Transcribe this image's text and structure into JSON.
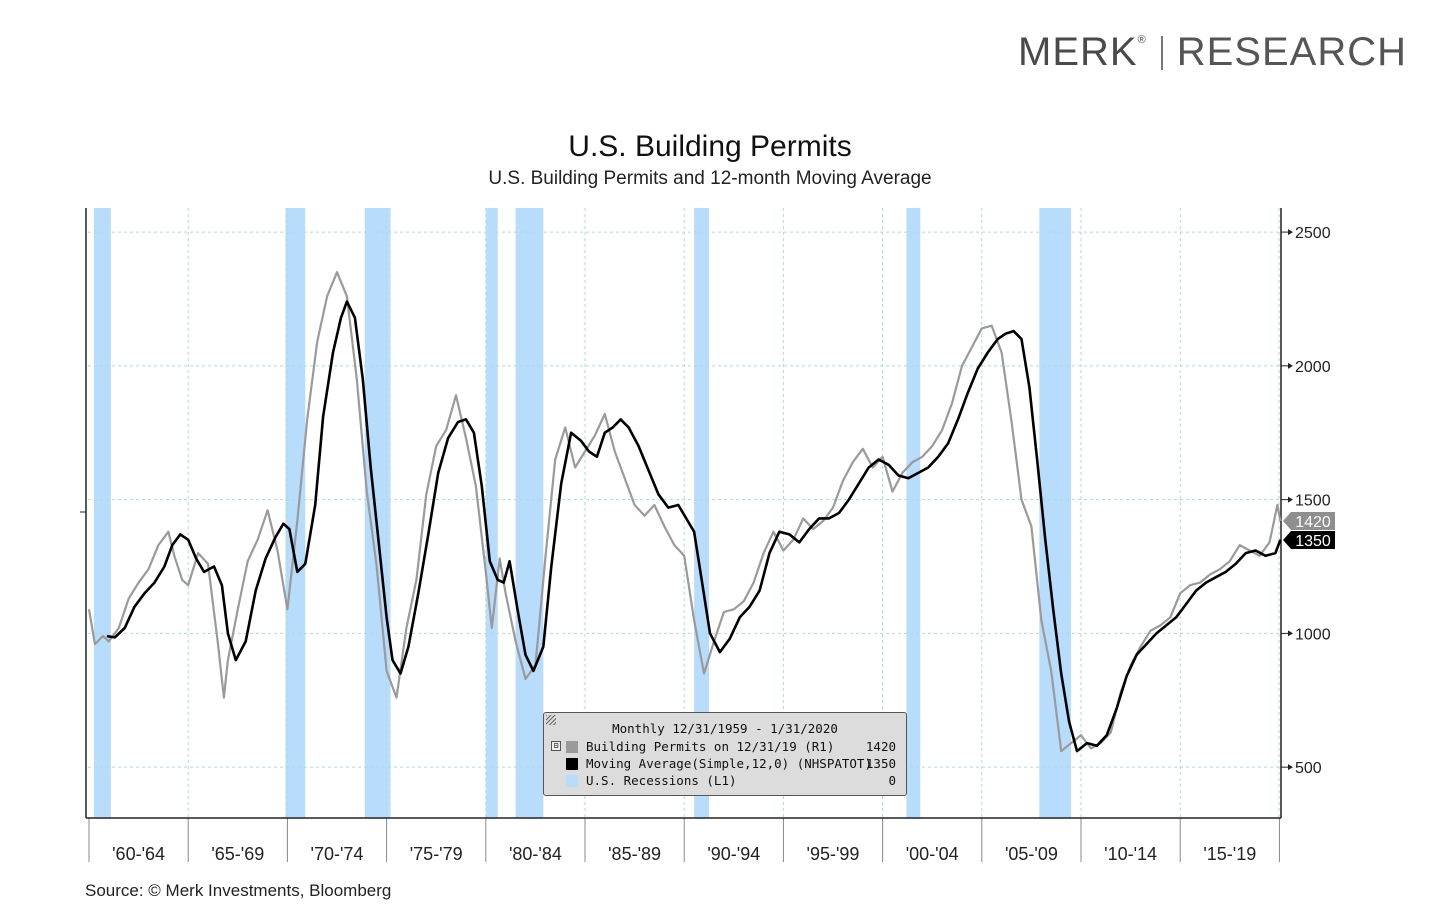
{
  "brand": {
    "name": "MERK",
    "trademark": "®",
    "division": "RESEARCH"
  },
  "title": "U.S. Building Permits",
  "subtitle": "U.S. Building Permits and 12-month Moving Average",
  "source": "Source: © Merk Investments, Bloomberg",
  "legend": {
    "header": "Monthly 12/31/1959 - 1/31/2020",
    "toggle": "⊟",
    "items": [
      {
        "label": "Building Permits on 12/31/19 (R1)",
        "value": "1420",
        "color": "#9a9a9a"
      },
      {
        "label": "Moving Average(Simple,12,0) (NHSPATOT)",
        "value": "1350",
        "color": "#000000"
      },
      {
        "label": "U.S. Recessions (L1)",
        "value": "0",
        "color": "#b8dcfb"
      }
    ]
  },
  "chart_data": {
    "type": "line",
    "x_range": [
      1959.95,
      2020.08
    ],
    "ylim": [
      310,
      2590
    ],
    "yticks": [
      500,
      1000,
      1500,
      2000,
      2500
    ],
    "xtick_labels": [
      "'60-'64",
      "'65-'69",
      "'70-'74",
      "'75-'79",
      "'80-'84",
      "'85-'89",
      "'90-'94",
      "'95-'99",
      "'00-'04",
      "'05-'09",
      "'10-'14",
      "'15-'19"
    ],
    "grid": true,
    "last_value_tags": [
      {
        "label": "1420",
        "value": 1420,
        "color": "#8f8f8f"
      },
      {
        "label": "1350",
        "value": 1350,
        "color": "#000000"
      }
    ],
    "recessions": [
      [
        1960.25,
        1961.1
      ],
      [
        1969.9,
        1970.9
      ],
      [
        1973.9,
        1975.2
      ],
      [
        1980.0,
        1980.6
      ],
      [
        1981.5,
        1982.9
      ],
      [
        1990.5,
        1991.25
      ],
      [
        2001.2,
        2001.9
      ],
      [
        2007.9,
        2009.5
      ]
    ],
    "series": [
      {
        "name": "Building Permits",
        "color": "#9a9a9a",
        "x": [
          1960.0,
          1960.3,
          1960.7,
          1961.0,
          1961.5,
          1962.0,
          1962.5,
          1963.0,
          1963.5,
          1964.0,
          1964.3,
          1964.7,
          1965.0,
          1965.5,
          1966.0,
          1966.5,
          1966.8,
          1967.0,
          1967.5,
          1968.0,
          1968.5,
          1969.0,
          1969.5,
          1970.0,
          1970.5,
          1971.0,
          1971.5,
          1972.0,
          1972.5,
          1973.0,
          1973.5,
          1974.0,
          1974.5,
          1975.0,
          1975.5,
          1976.0,
          1976.5,
          1977.0,
          1977.5,
          1978.0,
          1978.5,
          1979.0,
          1979.5,
          1980.0,
          1980.3,
          1980.7,
          1981.0,
          1981.5,
          1982.0,
          1982.5,
          1983.0,
          1983.5,
          1984.0,
          1984.5,
          1985.0,
          1985.5,
          1986.0,
          1986.5,
          1987.0,
          1987.5,
          1988.0,
          1988.5,
          1989.0,
          1989.5,
          1990.0,
          1990.5,
          1991.0,
          1991.5,
          1992.0,
          1992.5,
          1993.0,
          1993.5,
          1994.0,
          1994.5,
          1995.0,
          1995.5,
          1996.0,
          1996.5,
          1997.0,
          1997.5,
          1998.0,
          1998.5,
          1999.0,
          1999.5,
          2000.0,
          2000.5,
          2001.0,
          2001.5,
          2002.0,
          2002.5,
          2003.0,
          2003.5,
          2004.0,
          2004.5,
          2005.0,
          2005.5,
          2006.0,
          2006.5,
          2007.0,
          2007.5,
          2008.0,
          2008.5,
          2009.0,
          2009.5,
          2010.0,
          2010.5,
          2011.0,
          2011.5,
          2012.0,
          2012.5,
          2013.0,
          2013.5,
          2014.0,
          2014.5,
          2015.0,
          2015.5,
          2016.0,
          2016.5,
          2017.0,
          2017.5,
          2018.0,
          2018.5,
          2019.0,
          2019.5,
          2019.9,
          2020.05
        ],
        "values": [
          1090,
          960,
          990,
          970,
          1020,
          1130,
          1190,
          1240,
          1330,
          1380,
          1290,
          1200,
          1180,
          1300,
          1260,
          960,
          760,
          900,
          1090,
          1270,
          1350,
          1460,
          1310,
          1090,
          1420,
          1800,
          2090,
          2260,
          2350,
          2260,
          1950,
          1530,
          1250,
          860,
          760,
          1020,
          1200,
          1520,
          1700,
          1760,
          1890,
          1730,
          1550,
          1230,
          1020,
          1280,
          1150,
          970,
          830,
          880,
          1280,
          1650,
          1770,
          1620,
          1680,
          1740,
          1820,
          1680,
          1580,
          1480,
          1440,
          1480,
          1400,
          1330,
          1290,
          1050,
          850,
          970,
          1080,
          1090,
          1120,
          1190,
          1300,
          1380,
          1310,
          1350,
          1430,
          1390,
          1420,
          1470,
          1570,
          1640,
          1690,
          1620,
          1660,
          1530,
          1600,
          1640,
          1660,
          1700,
          1760,
          1860,
          2000,
          2070,
          2140,
          2150,
          2050,
          1790,
          1500,
          1400,
          1050,
          860,
          560,
          590,
          620,
          570,
          590,
          630,
          780,
          880,
          950,
          1010,
          1030,
          1060,
          1150,
          1180,
          1190,
          1220,
          1240,
          1270,
          1330,
          1310,
          1290,
          1340,
          1480,
          1420
        ]
      },
      {
        "name": "Moving Average(Simple,12,0) (NHSPATOT)",
        "color": "#000000",
        "x": [
          1960.9,
          1961.3,
          1961.8,
          1962.3,
          1962.8,
          1963.3,
          1963.8,
          1964.2,
          1964.6,
          1965.0,
          1965.4,
          1965.8,
          1966.3,
          1966.7,
          1967.0,
          1967.4,
          1967.9,
          1968.4,
          1968.9,
          1969.4,
          1969.8,
          1970.1,
          1970.5,
          1970.9,
          1971.4,
          1971.8,
          1972.3,
          1972.7,
          1973.0,
          1973.4,
          1973.8,
          1974.2,
          1974.6,
          1975.0,
          1975.3,
          1975.7,
          1976.1,
          1976.6,
          1977.1,
          1977.6,
          1978.1,
          1978.6,
          1979.0,
          1979.4,
          1979.8,
          1980.2,
          1980.6,
          1980.9,
          1981.2,
          1981.6,
          1982.0,
          1982.4,
          1982.9,
          1983.3,
          1983.8,
          1984.3,
          1984.8,
          1985.2,
          1985.6,
          1986.0,
          1986.4,
          1986.8,
          1987.2,
          1987.7,
          1988.2,
          1988.7,
          1989.2,
          1989.7,
          1990.1,
          1990.5,
          1990.9,
          1991.3,
          1991.8,
          1992.3,
          1992.8,
          1993.3,
          1993.8,
          1994.3,
          1994.8,
          1995.3,
          1995.8,
          1996.3,
          1996.8,
          1997.3,
          1997.8,
          1998.3,
          1998.8,
          1999.3,
          1999.8,
          2000.3,
          2000.8,
          2001.3,
          2001.8,
          2002.3,
          2002.8,
          2003.3,
          2003.8,
          2004.3,
          2004.8,
          2005.3,
          2005.8,
          2006.2,
          2006.6,
          2007.0,
          2007.4,
          2007.8,
          2008.2,
          2008.6,
          2009.0,
          2009.4,
          2009.8,
          2010.3,
          2010.8,
          2011.3,
          2011.8,
          2012.3,
          2012.8,
          2013.3,
          2013.8,
          2014.3,
          2014.8,
          2015.3,
          2015.8,
          2016.3,
          2016.8,
          2017.3,
          2017.8,
          2018.3,
          2018.8,
          2019.3,
          2019.8,
          2020.05
        ],
        "values": [
          990,
          985,
          1020,
          1100,
          1150,
          1190,
          1250,
          1330,
          1370,
          1350,
          1280,
          1230,
          1250,
          1180,
          1000,
          900,
          970,
          1160,
          1280,
          1360,
          1410,
          1390,
          1230,
          1260,
          1480,
          1810,
          2050,
          2180,
          2240,
          2180,
          1950,
          1620,
          1340,
          1060,
          900,
          850,
          950,
          1150,
          1370,
          1600,
          1730,
          1790,
          1800,
          1750,
          1550,
          1270,
          1200,
          1190,
          1270,
          1090,
          920,
          860,
          950,
          1250,
          1560,
          1750,
          1720,
          1680,
          1660,
          1750,
          1770,
          1800,
          1770,
          1700,
          1610,
          1520,
          1470,
          1480,
          1430,
          1380,
          1190,
          1000,
          930,
          980,
          1060,
          1100,
          1160,
          1300,
          1380,
          1370,
          1340,
          1390,
          1430,
          1430,
          1450,
          1500,
          1560,
          1620,
          1650,
          1630,
          1590,
          1580,
          1600,
          1620,
          1660,
          1710,
          1800,
          1900,
          1990,
          2050,
          2100,
          2120,
          2130,
          2100,
          1920,
          1640,
          1350,
          1090,
          850,
          670,
          560,
          590,
          580,
          620,
          720,
          840,
          920,
          960,
          1000,
          1030,
          1060,
          1110,
          1160,
          1190,
          1210,
          1230,
          1260,
          1300,
          1310,
          1290,
          1300,
          1350
        ]
      }
    ]
  }
}
